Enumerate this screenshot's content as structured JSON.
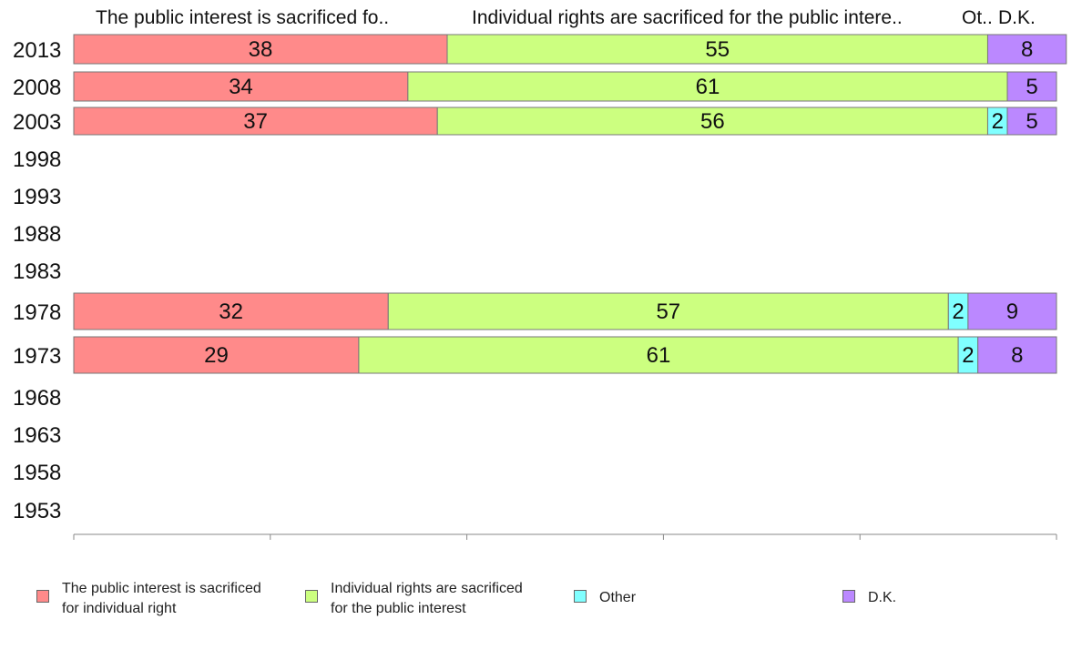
{
  "chart_data": {
    "type": "bar",
    "orientation": "horizontal",
    "stacked": true,
    "categories": [
      "2013",
      "2008",
      "2003",
      "1998",
      "1993",
      "1988",
      "1983",
      "1978",
      "1973",
      "1968",
      "1963",
      "1958",
      "1953"
    ],
    "series": [
      {
        "name": "The public interest is sacrificed for individual right",
        "header": "The public interest is sacrificed fo..",
        "color": "#ff8a8a",
        "values": [
          38,
          34,
          37,
          null,
          null,
          null,
          null,
          32,
          29,
          null,
          null,
          null,
          null
        ]
      },
      {
        "name": "Individual rights are sacrificed for the public interest",
        "header": "Individual rights are sacrificed for the public intere..",
        "color": "#ccff80",
        "values": [
          55,
          61,
          56,
          null,
          null,
          null,
          null,
          57,
          61,
          null,
          null,
          null,
          null
        ]
      },
      {
        "name": "Other",
        "header": "Ot..",
        "color": "#80ffff",
        "values": [
          0,
          0,
          2,
          null,
          null,
          null,
          null,
          2,
          2,
          null,
          null,
          null,
          null
        ]
      },
      {
        "name": "D.K.",
        "header": "D.K.",
        "color": "#bb88ff",
        "values": [
          8,
          5,
          5,
          null,
          null,
          null,
          null,
          9,
          8,
          null,
          null,
          null,
          null
        ]
      }
    ],
    "xlim": [
      0,
      100
    ],
    "xticks": [
      0,
      20,
      40,
      60,
      80,
      100
    ],
    "grid": false,
    "legend_position": "bottom"
  },
  "legend": [
    {
      "label": "The public interest is sacrificed\nfor individual right",
      "color": "#ff8a8a"
    },
    {
      "label": "Individual rights are sacrificed\nfor the public interest",
      "color": "#ccff80"
    },
    {
      "label": "Other",
      "color": "#80ffff"
    },
    {
      "label": "D.K.",
      "color": "#bb88ff"
    }
  ]
}
